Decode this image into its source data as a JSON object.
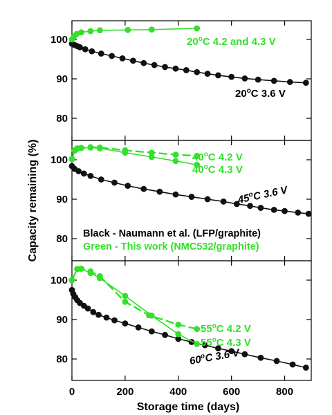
{
  "colors": {
    "black_series": "#111111",
    "green_series": "#33e02a"
  },
  "chart_data": {
    "type": "line",
    "xlabel": "Storage time (days)",
    "ylabel": "Capacity remaining (%)",
    "xlim": [
      0,
      900
    ],
    "x_ticks": [
      "0",
      "200",
      "400",
      "600",
      "800"
    ],
    "legend": {
      "placement": "middle-panel-lower-right",
      "items": [
        {
          "label": "Black - Naumann et al. (LFP/graphite)",
          "color": "#111111"
        },
        {
          "label": "Green - This work (NMC532/graphite)",
          "color": "#33e02a"
        }
      ]
    },
    "panels": [
      {
        "ylim": [
          75,
          105
        ],
        "y_ticks": [
          "100",
          "90",
          "80"
        ],
        "series": [
          {
            "name": "20°C 4.2 and 4.3 V",
            "label_parts": [
              "20",
              "o",
              "C 4.2 and 4.3 V"
            ],
            "color": "#33e02a",
            "dashed": false,
            "x": [
              0,
              8,
              18,
              35,
              70,
              105,
              210,
              300,
              470
            ],
            "y": [
              100,
              100.8,
              101.4,
              101.8,
              102.1,
              102.3,
              102.4,
              102.5,
              102.8
            ]
          },
          {
            "name": "20°C 3.6 V",
            "label_parts": [
              "20",
              "o",
              "C 3.6 V"
            ],
            "color": "#111111",
            "dashed": false,
            "x": [
              0,
              10,
              20,
              30,
              50,
              75,
              110,
              150,
              190,
              230,
              270,
              310,
              350,
              390,
              430,
              470,
              510,
              550,
              600,
              650,
              700,
              760,
              820,
              880
            ],
            "y": [
              98.9,
              98.6,
              98.3,
              98.0,
              97.5,
              97.0,
              96.4,
              95.8,
              95.2,
              94.6,
              94.0,
              93.5,
              93.0,
              92.6,
              92.2,
              91.7,
              91.3,
              90.9,
              90.5,
              90.1,
              89.8,
              89.5,
              89.2,
              89.0
            ]
          }
        ]
      },
      {
        "ylim": [
          75,
          105
        ],
        "y_ticks": [
          "100",
          "90",
          "80"
        ],
        "series": [
          {
            "name": "40°C 4.2 V",
            "label_parts": [
              "40",
              "o",
              "C 4.2 V"
            ],
            "color": "#33e02a",
            "dashed": true,
            "x": [
              0,
              10,
              20,
              35,
              70,
              105,
              200,
              300,
              390,
              470
            ],
            "y": [
              100.2,
              102.3,
              102.8,
              103.0,
              103.2,
              103.1,
              102.4,
              101.8,
              101.3,
              101.0
            ]
          },
          {
            "name": "40°C 4.3 V",
            "label_parts": [
              "40",
              "o",
              "C 4.3 V"
            ],
            "color": "#33e02a",
            "dashed": false,
            "x": [
              0,
              10,
              20,
              35,
              70,
              105,
              200,
              300,
              390,
              470
            ],
            "y": [
              100.2,
              102.4,
              102.9,
              103.0,
              103.1,
              102.9,
              101.8,
              100.7,
              99.7,
              98.7
            ]
          },
          {
            "name": "45°C 3.6 V",
            "label_parts": [
              "45",
              "o",
              "C 3.6 V"
            ],
            "color": "#111111",
            "dashed": false,
            "x": [
              0,
              10,
              25,
              45,
              70,
              110,
              160,
              210,
              270,
              330,
              390,
              450,
              510,
              570,
              620,
              670,
              710,
              760,
              800,
              850,
              890
            ],
            "y": [
              98.4,
              97.7,
              97.1,
              96.5,
              95.9,
              95.0,
              94.2,
              93.4,
              92.6,
              91.9,
              91.2,
              90.6,
              90.0,
              89.4,
              88.8,
              88.3,
              87.8,
              87.3,
              87.0,
              86.6,
              86.3
            ]
          }
        ]
      },
      {
        "ylim": [
          75,
          105
        ],
        "y_ticks": [
          "100",
          "90",
          "80"
        ],
        "series": [
          {
            "name": "55°C 4.2 V",
            "label_parts": [
              "55",
              "o",
              "C 4.2 V"
            ],
            "color": "#33e02a",
            "dashed": true,
            "x": [
              0,
              20,
              35,
              70,
              105,
              200,
              290,
              400,
              470
            ],
            "y": [
              100,
              102.8,
              102.9,
              102.2,
              101.0,
              94.5,
              91.1,
              88.7,
              87.6
            ]
          },
          {
            "name": "55°C 4.3 V",
            "label_parts": [
              "55",
              "o",
              "C 4.3 V"
            ],
            "color": "#33e02a",
            "dashed": false,
            "x": [
              0,
              20,
              35,
              70,
              105,
              200,
              300,
              400,
              470
            ],
            "y": [
              100,
              102.8,
              102.9,
              101.8,
              100.5,
              96.0,
              91.0,
              86.3,
              83.8
            ]
          },
          {
            "name": "60°C 3.6 V",
            "label_parts": [
              "60",
              "o",
              "C 3.6 V"
            ],
            "color": "#111111",
            "dashed": false,
            "x": [
              0,
              5,
              12,
              20,
              30,
              45,
              60,
              80,
              100,
              130,
              160,
              200,
              250,
              300,
              350,
              400,
              450,
              500,
              550,
              600,
              650,
              710,
              770,
              830,
              880
            ],
            "y": [
              97.5,
              96.5,
              95.7,
              94.9,
              94.2,
              93.5,
              92.8,
              91.9,
              91.2,
              90.5,
              89.8,
              89.0,
              88.0,
              87.0,
              86.1,
              85.1,
              84.3,
              83.5,
              82.7,
              82.0,
              81.2,
              80.3,
              79.5,
              78.6,
              77.8
            ]
          }
        ]
      }
    ]
  }
}
